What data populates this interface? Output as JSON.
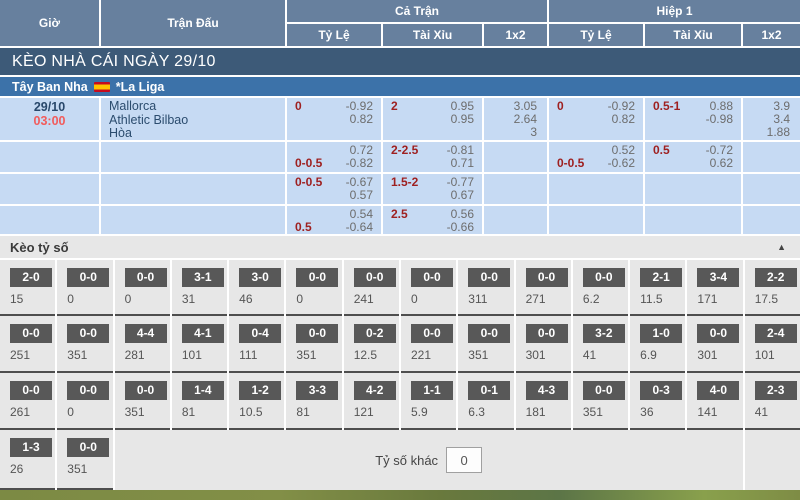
{
  "header": {
    "col_time": "Giờ",
    "col_match": "Trận Đấu",
    "group_full": "Cả Trận",
    "group_half": "Hiệp 1",
    "sub_hdp": "Tỷ Lệ",
    "sub_ou": "Tài Xỉu",
    "sub_1x2": "1x2"
  },
  "section_title": "KÈO NHÀ CÁI NGÀY 29/10",
  "league": {
    "country": "Tây Ban Nha",
    "flag": "spain-flag",
    "name": "*La Liga"
  },
  "match": {
    "date": "29/10",
    "time": "03:00",
    "home": "Mallorca",
    "away": "Athletic Bilbao",
    "draw_label": "Hòa"
  },
  "odds_rows": [
    {
      "ft_hdp": [
        [
          "0",
          "-0.92"
        ],
        [
          "",
          "0.82"
        ]
      ],
      "ft_ou": [
        [
          "2",
          "0.95"
        ],
        [
          "",
          "0.95"
        ]
      ],
      "ft_1x2": [
        "3.05",
        "2.64",
        "3"
      ],
      "h1_hdp": [
        [
          "0",
          "-0.92"
        ],
        [
          "",
          "0.82"
        ]
      ],
      "h1_ou": [
        [
          "0.5-1",
          "0.88"
        ],
        [
          "",
          "-0.98"
        ]
      ],
      "h1_1x2": [
        "3.9",
        "3.4",
        "1.88"
      ]
    },
    {
      "ft_hdp": [
        [
          "",
          "0.72"
        ],
        [
          "0-0.5",
          "-0.82"
        ]
      ],
      "ft_ou": [
        [
          "2-2.5",
          "-0.81"
        ],
        [
          "",
          "0.71"
        ]
      ],
      "ft_1x2": [],
      "h1_hdp": [
        [
          "",
          "0.52"
        ],
        [
          "0-0.5",
          "-0.62"
        ]
      ],
      "h1_ou": [
        [
          "0.5",
          "-0.72"
        ],
        [
          "",
          "0.62"
        ]
      ],
      "h1_1x2": []
    },
    {
      "ft_hdp": [
        [
          "0-0.5",
          "-0.67"
        ],
        [
          "",
          "0.57"
        ]
      ],
      "ft_ou": [
        [
          "1.5-2",
          "-0.77"
        ],
        [
          "",
          "0.67"
        ]
      ],
      "ft_1x2": [],
      "h1_hdp": [],
      "h1_ou": [],
      "h1_1x2": []
    },
    {
      "ft_hdp": [
        [
          "",
          "0.54"
        ],
        [
          "0.5",
          "-0.64"
        ]
      ],
      "ft_ou": [
        [
          "2.5",
          "0.56"
        ],
        [
          "",
          "-0.66"
        ]
      ],
      "ft_1x2": [],
      "h1_hdp": [],
      "h1_ou": [],
      "h1_1x2": []
    }
  ],
  "score_section": {
    "title": "Kèo tỷ số",
    "collapse_icon": "▲",
    "rows": [
      [
        [
          "2-0",
          "15"
        ],
        [
          "0-0",
          "0"
        ],
        [
          "0-0",
          "0"
        ],
        [
          "3-1",
          "31"
        ],
        [
          "3-0",
          "46"
        ],
        [
          "0-0",
          "0"
        ],
        [
          "0-0",
          "241"
        ],
        [
          "0-0",
          "0"
        ],
        [
          "0-0",
          "311"
        ],
        [
          "0-0",
          "271"
        ],
        [
          "0-0",
          "6.2"
        ],
        [
          "2-1",
          "11.5"
        ],
        [
          "3-4",
          "171"
        ],
        [
          "2-2",
          "17.5"
        ]
      ],
      [
        [
          "0-0",
          "251"
        ],
        [
          "0-0",
          "351"
        ],
        [
          "4-4",
          "281"
        ],
        [
          "4-1",
          "101"
        ],
        [
          "0-4",
          "111"
        ],
        [
          "0-0",
          "351"
        ],
        [
          "0-2",
          "12.5"
        ],
        [
          "0-0",
          "221"
        ],
        [
          "0-0",
          "351"
        ],
        [
          "0-0",
          "301"
        ],
        [
          "3-2",
          "41"
        ],
        [
          "1-0",
          "6.9"
        ],
        [
          "0-0",
          "301"
        ],
        [
          "2-4",
          "101"
        ]
      ],
      [
        [
          "0-0",
          "261"
        ],
        [
          "0-0",
          "0"
        ],
        [
          "0-0",
          "351"
        ],
        [
          "1-4",
          "81"
        ],
        [
          "1-2",
          "10.5"
        ],
        [
          "3-3",
          "81"
        ],
        [
          "4-2",
          "121"
        ],
        [
          "1-1",
          "5.9"
        ],
        [
          "0-1",
          "6.3"
        ],
        [
          "4-3",
          "181"
        ],
        [
          "0-0",
          "351"
        ],
        [
          "0-3",
          "36"
        ],
        [
          "4-0",
          "141"
        ],
        [
          "2-3",
          "41"
        ]
      ],
      [
        [
          "1-3",
          "26"
        ],
        [
          "0-0",
          "351"
        ]
      ]
    ],
    "other_label": "Tỷ số khác",
    "other_value": "0"
  },
  "colors": {
    "header_bg": "#67809e",
    "title_bar_bg": "#3d5a78",
    "league_bar_bg": "#3c72a9",
    "row_bg": "#c6daf3",
    "handicap_red": "#9e2020",
    "time_red": "#f25b5b",
    "score_box_bg": "#585858"
  }
}
